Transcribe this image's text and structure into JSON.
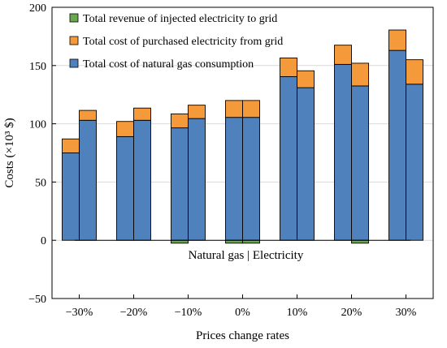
{
  "chart_data": {
    "type": "bar",
    "stacked": true,
    "title": "",
    "xlabel": "Prices change rates",
    "ylabel": "Costs (×10³ $)",
    "annotation": "Natural gas | Electricity",
    "ylim": [
      -50,
      200
    ],
    "yticks": [
      -50,
      0,
      50,
      100,
      150,
      200
    ],
    "grid": "horizontal",
    "legend_position": "top-left",
    "categories": [
      "−30%",
      "−20%",
      "−10%",
      "0%",
      "10%",
      "20%",
      "30%"
    ],
    "bars_per_category": [
      "Natural gas",
      "Electricity"
    ],
    "series": [
      {
        "name": "Total revenue of injected electricity to grid",
        "color": "#6aa84f",
        "values": [
          [
            0,
            0
          ],
          [
            0,
            0
          ],
          [
            -2.5,
            0
          ],
          [
            -2.5,
            -2.5
          ],
          [
            0,
            0
          ],
          [
            0,
            -2.5
          ],
          [
            0,
            0
          ]
        ]
      },
      {
        "name": "Total cost of purchased electricity from grid",
        "color": "#f59a3a",
        "values": [
          [
            12,
            8.5
          ],
          [
            13,
            10.5
          ],
          [
            12,
            11.5
          ],
          [
            14.5,
            14.5
          ],
          [
            16,
            14.5
          ],
          [
            16.5,
            19.5
          ],
          [
            17.5,
            21
          ]
        ]
      },
      {
        "name": "Total cost of natural gas consumption",
        "color": "#4f81bd",
        "values": [
          [
            75,
            103
          ],
          [
            89,
            103
          ],
          [
            96.5,
            104.5
          ],
          [
            105.5,
            105.5
          ],
          [
            140.5,
            131
          ],
          [
            151,
            132.5
          ],
          [
            163,
            134
          ]
        ]
      }
    ]
  }
}
